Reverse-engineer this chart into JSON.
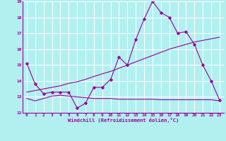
{
  "xlabel": "Windchill (Refroidissement éolien,°C)",
  "background_color": "#b2f0f0",
  "grid_color": "#ffffff",
  "line_color": "#990099",
  "xlim": [
    -0.5,
    23.5
  ],
  "ylim": [
    12,
    19
  ],
  "xticks": [
    0,
    1,
    2,
    3,
    4,
    5,
    6,
    7,
    8,
    9,
    10,
    11,
    12,
    13,
    14,
    15,
    16,
    17,
    18,
    19,
    20,
    21,
    22,
    23
  ],
  "yticks": [
    12,
    13,
    14,
    15,
    16,
    17,
    18,
    19
  ],
  "series1_x": [
    0,
    1,
    2,
    3,
    4,
    5,
    6,
    7,
    8,
    9,
    10,
    11,
    12,
    13,
    14,
    15,
    16,
    17,
    18,
    19,
    20,
    21,
    22,
    23
  ],
  "series1_y": [
    15.1,
    13.8,
    13.2,
    13.3,
    13.3,
    13.3,
    12.3,
    12.6,
    13.6,
    13.6,
    14.1,
    15.5,
    15.0,
    16.6,
    17.9,
    19.0,
    18.3,
    18.0,
    17.0,
    17.1,
    16.3,
    15.0,
    14.0,
    12.8
  ],
  "series2_x": [
    0,
    1,
    2,
    3,
    4,
    5,
    6,
    7,
    8,
    9,
    10,
    11,
    12,
    13,
    14,
    15,
    16,
    17,
    18,
    19,
    20,
    21,
    22,
    23
  ],
  "series2_y": [
    12.9,
    12.75,
    12.9,
    13.05,
    13.1,
    13.05,
    13.0,
    12.95,
    12.9,
    12.9,
    12.9,
    12.85,
    12.85,
    12.85,
    12.85,
    12.85,
    12.82,
    12.82,
    12.82,
    12.82,
    12.82,
    12.82,
    12.82,
    12.75
  ],
  "series3_x": [
    0,
    1,
    2,
    3,
    4,
    5,
    6,
    7,
    8,
    9,
    10,
    11,
    12,
    13,
    14,
    15,
    16,
    17,
    18,
    19,
    20,
    21,
    22,
    23
  ],
  "series3_y": [
    13.3,
    13.4,
    13.5,
    13.6,
    13.7,
    13.85,
    13.95,
    14.1,
    14.28,
    14.45,
    14.6,
    14.8,
    15.0,
    15.2,
    15.4,
    15.6,
    15.8,
    16.0,
    16.15,
    16.3,
    16.45,
    16.55,
    16.65,
    16.75
  ]
}
